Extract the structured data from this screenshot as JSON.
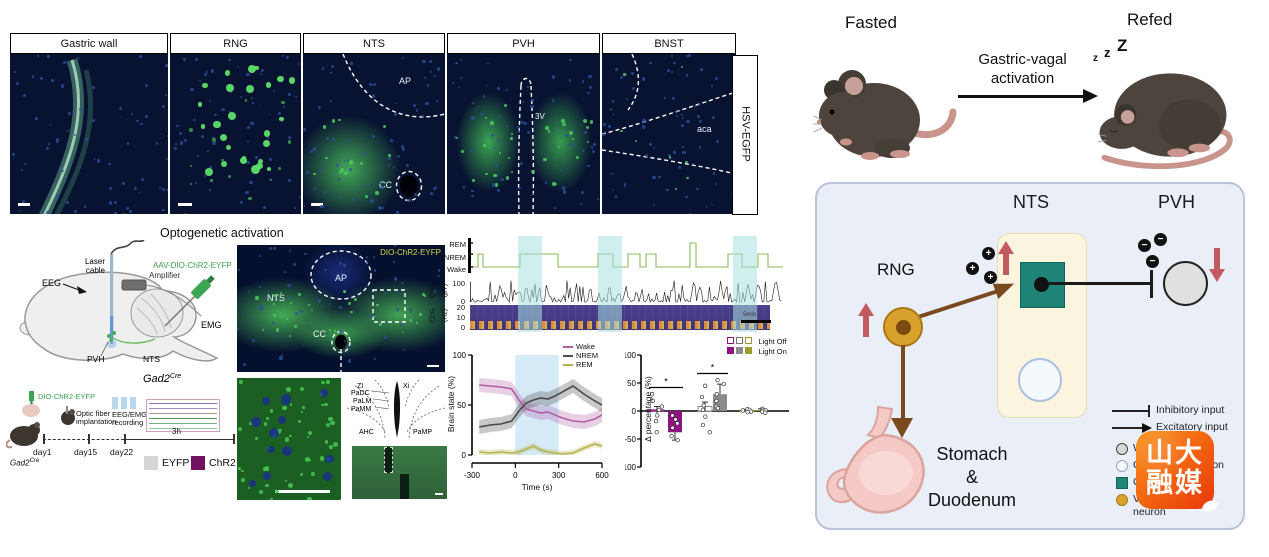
{
  "histology": {
    "panels": [
      {
        "label": "Gastric wall"
      },
      {
        "label": "RNG"
      },
      {
        "label": "NTS",
        "ann1": "AP",
        "ann2": "CC"
      },
      {
        "label": "PVH",
        "ann1": "3V"
      },
      {
        "label": "BNST",
        "ann1": "aca"
      }
    ],
    "side_label": "HSV-EGFP"
  },
  "opto": {
    "title": "Optogenetic activation",
    "brain": {
      "laser1": "Laser",
      "laser2": "cable",
      "eeg": "EEG",
      "amp": "Amplifier",
      "virus": "AAV-DIO-ChR2-EYFP",
      "emg": "EMG",
      "pvh": "PVH",
      "nts": "NTS",
      "gad": "Gad2",
      "cre": "Cre"
    },
    "timeline": {
      "virus": "DIO-ChR2-EYFP",
      "implant1": "Optic fiber",
      "implant2": "implantation",
      "rec1": "EEG/EMG",
      "rec2": "recording",
      "dur": "3h",
      "day1": "day1",
      "day15": "day15",
      "day22": "day22",
      "gad": "Gad2",
      "cre": "Cre",
      "legend": [
        {
          "label": "EYFP",
          "color": "#d6d6d6"
        },
        {
          "label": "ChR2",
          "color": "#70125f"
        }
      ]
    }
  },
  "micro": {
    "tag": "DIO-ChR2-EYFP",
    "ap": "AP",
    "nts": "NTS",
    "cc": "CC",
    "atlas": [
      "ZI",
      "Xi",
      "PaDC",
      "PaLM",
      "PaMM",
      "AHC",
      "PaMP"
    ]
  },
  "traces": {
    "states": [
      "REM",
      "NREM",
      "Wake"
    ],
    "emg_label": "EMG",
    "emg_unit": "(μV)",
    "emg_ticks": [
      "100",
      "0"
    ],
    "eeg_label": "EEG",
    "eeg_unit": "(Hz)",
    "eeg_ticks": [
      "20",
      "10",
      "0"
    ],
    "scalebar": "5min"
  },
  "chart_data": [
    {
      "id": "brain_state",
      "type": "line",
      "xlabel": "Time (s)",
      "ylabel": "Brain state (%)",
      "xlim": [
        -300,
        600
      ],
      "ylim": [
        0,
        100
      ],
      "x_ticks": [
        -300,
        0,
        300,
        600
      ],
      "y_ticks": [
        0,
        50,
        100
      ],
      "stim_window": [
        0,
        300
      ],
      "stim_color": "#cfe6f7",
      "x": [
        -250,
        -175,
        -100,
        -25,
        25,
        75,
        125,
        175,
        225,
        275,
        325,
        400,
        475,
        550,
        600
      ],
      "series": [
        {
          "name": "Wake",
          "color": "#b05fa5",
          "band": 7,
          "values": [
            70,
            69,
            68,
            66,
            55,
            46,
            44,
            42,
            43,
            40,
            37,
            34,
            33,
            36,
            40
          ]
        },
        {
          "name": "NREM",
          "color": "#4a4a4a",
          "band": 7,
          "values": [
            28,
            30,
            31,
            34,
            44,
            52,
            55,
            57,
            56,
            59,
            63,
            69,
            61,
            54,
            50
          ]
        },
        {
          "name": "REM",
          "color": "#b3b34d",
          "band": 3,
          "values": [
            3,
            2,
            3,
            2,
            3,
            6,
            9,
            5,
            3,
            2,
            1,
            2,
            7,
            11,
            9
          ]
        }
      ],
      "legend_position": "top-right"
    },
    {
      "id": "delta_pct",
      "type": "bar",
      "ylabel": "Δ percentage (%)",
      "ylim": [
        -100,
        100
      ],
      "y_ticks": [
        -100,
        -50,
        0,
        50,
        100
      ],
      "legend": {
        "off": "Light Off",
        "on": "Light On"
      },
      "colors": {
        "Wake": "#8e1380",
        "NREM": "#8c8c8c",
        "REM": "#9a9a2e"
      },
      "groups": [
        {
          "state": "Wake",
          "light_off": 2,
          "light_on": -38,
          "off_err": 6,
          "on_err": 14,
          "sig": "*",
          "points_off": [
            30,
            18,
            8,
            2,
            -8,
            -18,
            -38
          ],
          "points_on": [
            -8,
            -15,
            -22,
            -30,
            -45,
            -52
          ]
        },
        {
          "state": "NREM",
          "light_off": 8,
          "light_on": 30,
          "off_err": 8,
          "on_err": 18,
          "sig": "*",
          "points_off": [
            45,
            25,
            10,
            2,
            -10,
            -25,
            -38
          ],
          "points_on": [
            55,
            48,
            30,
            18,
            8,
            5
          ]
        },
        {
          "state": "REM",
          "light_off": 1,
          "light_on": 2,
          "off_err": 2,
          "on_err": 2,
          "sig": null,
          "points_off": [
            3,
            2,
            1,
            -1,
            -2
          ],
          "points_on": [
            4,
            2,
            1,
            -1,
            -3
          ]
        }
      ]
    }
  ],
  "summary": {
    "fasted": "Fasted",
    "refed": "Refed",
    "z1": "z",
    "z2": "z",
    "z3": "Z",
    "arrow1": "Gastric-vagal",
    "arrow2": "activation",
    "nts": "NTS",
    "pvh": "PVH",
    "rng": "RNG",
    "stomach1": "Stomach",
    "stomach2": "&",
    "stomach3": "Duodenum",
    "plus": "+",
    "minus": "−",
    "legend": {
      "inhibitory": "Inhibitory input",
      "excitatory": "Excitatory input",
      "rows": [
        {
          "frag_left": "W",
          "frag_right": ""
        },
        {
          "frag_left": "G",
          "frag_right": "uron"
        },
        {
          "frag_left": "G",
          "frag_right": "n"
        },
        {
          "frag_left": "Va",
          "frag_right": "",
          "line2": "neuron"
        }
      ]
    },
    "watermark": {
      "line1": "山大",
      "line2": "融媒"
    }
  },
  "colors": {
    "teal": "#1f8578",
    "gold": "#d9a22c",
    "brown": "#7a4a1e",
    "red_arrow": "#c25b60",
    "hypno_line": "#88bb55",
    "panel_bg": "#e9eef7",
    "cream": "#fbf5df"
  }
}
